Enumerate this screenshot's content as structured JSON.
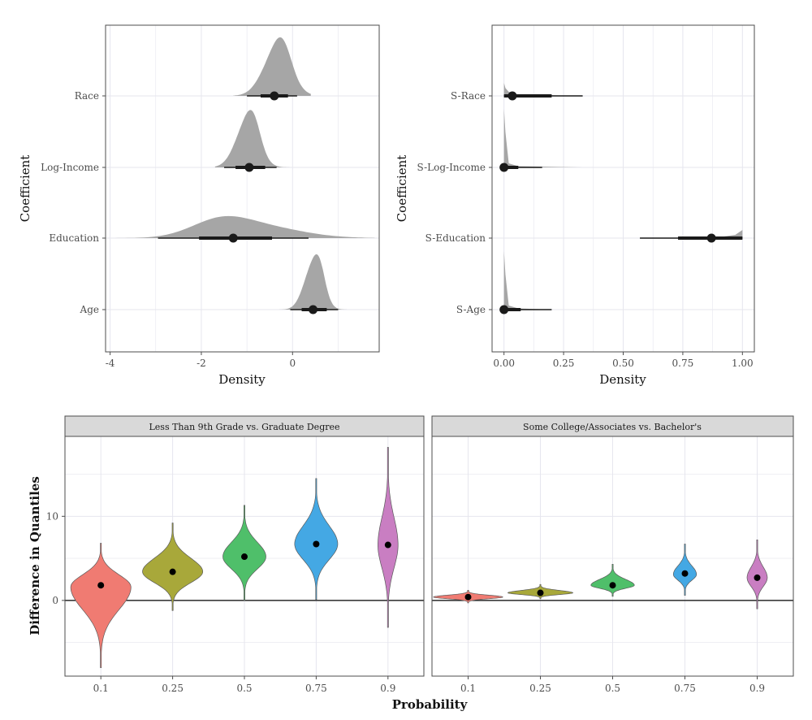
{
  "chart_data": [
    {
      "type": "density-ridge",
      "xlabel": "Density",
      "ylabel": "Coefficient",
      "xlim": [
        -4.1,
        1.9
      ],
      "xticks": [
        -4,
        -2,
        0
      ],
      "categories": [
        "Race",
        "Log-Income",
        "Education",
        "Age"
      ],
      "series": [
        {
          "name": "Race",
          "median": -0.4,
          "inner": [
            -0.7,
            -0.1
          ],
          "outer": [
            -1.0,
            0.1
          ],
          "range": [
            -1.3,
            0.4
          ],
          "peak": -0.35,
          "spread": 0.3
        },
        {
          "name": "Log-Income",
          "median": -0.95,
          "inner": [
            -1.25,
            -0.6
          ],
          "outer": [
            -1.5,
            -0.35
          ],
          "range": [
            -1.7,
            0.1
          ],
          "peak": -1.0,
          "spread": 0.25
        },
        {
          "name": "Education",
          "median": -1.3,
          "inner": [
            -2.05,
            -0.45
          ],
          "outer": [
            -2.95,
            0.35
          ],
          "range": [
            -3.9,
            1.8
          ],
          "peak": -1.6,
          "spread": 0.9
        },
        {
          "name": "Age",
          "median": 0.45,
          "inner": [
            0.2,
            0.75
          ],
          "outer": [
            -0.05,
            1.0
          ],
          "range": [
            -0.3,
            1.3
          ],
          "peak": 0.45,
          "spread": 0.2
        }
      ],
      "grid": true
    },
    {
      "type": "density-ridge",
      "xlabel": "Density",
      "ylabel": "Coefficient",
      "xlim": [
        -0.05,
        1.05
      ],
      "xticks": [
        "0.00",
        "0.25",
        "0.50",
        "0.75",
        "1.00"
      ],
      "categories": [
        "S-Race",
        "S-Log-Income",
        "S-Education",
        "S-Age"
      ],
      "series": [
        {
          "name": "S-Race",
          "median": 0.035,
          "inner": [
            0.0,
            0.2
          ],
          "outer": [
            0.0,
            0.33
          ],
          "range": [
            0.0,
            0.33
          ]
        },
        {
          "name": "S-Log-Income",
          "median": 0.0,
          "inner": [
            0.0,
            0.06
          ],
          "outer": [
            0.0,
            0.16
          ],
          "range": [
            0.0,
            0.33
          ]
        },
        {
          "name": "S-Education",
          "median": 0.87,
          "inner": [
            0.73,
            1.0
          ],
          "outer": [
            0.57,
            1.0
          ],
          "range": [
            0.57,
            1.0
          ]
        },
        {
          "name": "S-Age",
          "median": 0.0,
          "inner": [
            0.0,
            0.07
          ],
          "outer": [
            0.0,
            0.2
          ],
          "range": [
            0.0,
            0.2
          ]
        }
      ],
      "grid": true
    },
    {
      "type": "violin",
      "panel": "Less Than 9th Grade vs. Graduate Degree",
      "categories": [
        "0.1",
        "0.25",
        "0.5",
        "0.75",
        "0.9"
      ],
      "ylabel": "Difference in Quantiles",
      "xlabel": "Probability",
      "ylim": [
        -9.0,
        19.5
      ],
      "yticks": [
        0,
        10
      ],
      "reference_line": 0,
      "series": [
        {
          "name": "0.1",
          "point": 1.8,
          "min": -8.0,
          "max": 6.8,
          "mode": 1.6,
          "half_width": 0.42,
          "color": "#f07b72"
        },
        {
          "name": "0.25",
          "point": 3.4,
          "min": -1.2,
          "max": 9.2,
          "mode": 3.4,
          "half_width": 0.42,
          "color": "#a8a83a"
        },
        {
          "name": "0.5",
          "point": 5.2,
          "min": 0.0,
          "max": 11.3,
          "mode": 5.2,
          "half_width": 0.3,
          "color": "#4fbf6a"
        },
        {
          "name": "0.75",
          "point": 6.7,
          "min": 0.1,
          "max": 14.5,
          "mode": 6.7,
          "half_width": 0.3,
          "color": "#44a8e4"
        },
        {
          "name": "0.9",
          "point": 6.6,
          "min": -3.2,
          "max": 18.2,
          "mode": 6.6,
          "half_width": 0.14,
          "color": "#c97ec2"
        }
      ],
      "grid": true
    },
    {
      "type": "violin",
      "panel": "Some College/Associates vs. Bachelor's",
      "categories": [
        "0.1",
        "0.25",
        "0.5",
        "0.75",
        "0.9"
      ],
      "xlabel": "Probability",
      "ylim": [
        -9.0,
        19.5
      ],
      "reference_line": 0,
      "series": [
        {
          "name": "0.1",
          "point": 0.4,
          "min": -0.3,
          "max": 1.2,
          "mode": 0.4,
          "half_width": 0.48,
          "color": "#f07b72"
        },
        {
          "name": "0.25",
          "point": 0.9,
          "min": 0.2,
          "max": 1.9,
          "mode": 0.9,
          "half_width": 0.45,
          "color": "#a8a83a"
        },
        {
          "name": "0.5",
          "point": 1.8,
          "min": 0.5,
          "max": 4.3,
          "mode": 1.8,
          "half_width": 0.3,
          "color": "#4fbf6a"
        },
        {
          "name": "0.75",
          "point": 3.2,
          "min": 0.6,
          "max": 6.7,
          "mode": 3.1,
          "half_width": 0.16,
          "color": "#44a8e4"
        },
        {
          "name": "0.9",
          "point": 2.7,
          "min": -1.0,
          "max": 7.2,
          "mode": 2.7,
          "half_width": 0.14,
          "color": "#c97ec2"
        }
      ],
      "grid": true
    }
  ],
  "colors": {
    "density_fill": "#a6a6a6",
    "interval": "#1a1a1a",
    "strip_fill": "#d9d9d9",
    "grid": "#e6e6ee",
    "panel_border": "#4d4d4d"
  }
}
